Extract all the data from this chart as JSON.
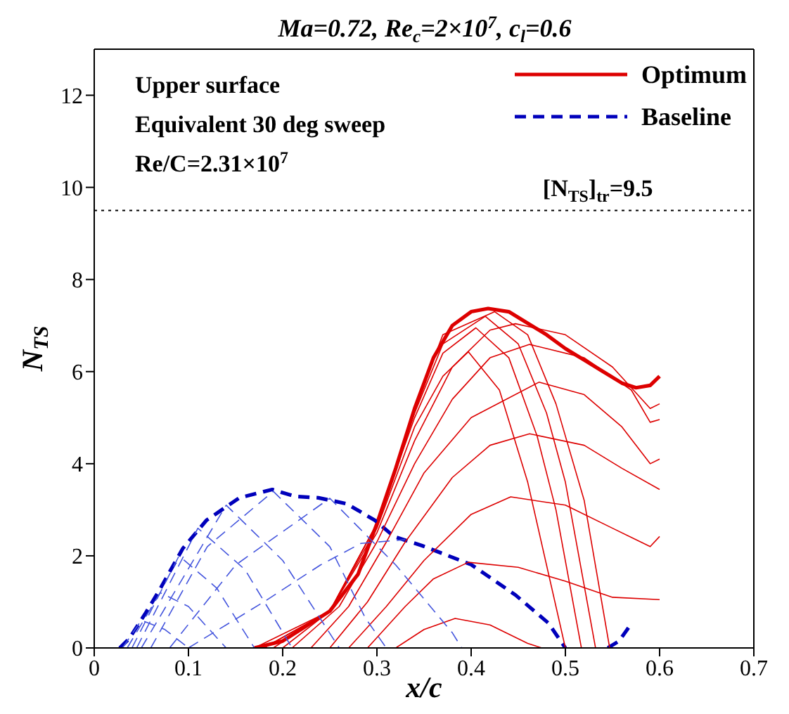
{
  "chart_data": {
    "type": "line",
    "title": "Ma=0.72, Re$_{c}$=2×10$^{7}$, c$_{l}$=0.6",
    "xlabel": "x/c",
    "ylabel": "N$_{TS}$",
    "annotations": [
      "Upper surface",
      "Equivalent 30 deg sweep",
      "Re/C=2.31×10$^{7}$"
    ],
    "xlim": [
      0,
      0.7
    ],
    "xticks": [
      0,
      0.1,
      0.2,
      0.3,
      0.4,
      0.5,
      0.6,
      0.7
    ],
    "ylim": [
      0,
      13
    ],
    "yticks": [
      0,
      2,
      4,
      6,
      8,
      10,
      12
    ],
    "legend": "top right",
    "marker": "none",
    "ref_lines": [
      {
        "axis": "y",
        "value": 9.5,
        "label": "[N$_{TS}$]$_{tr}$=9.5",
        "color": "#000000",
        "line_style": "dotted"
      }
    ],
    "series": [
      {
        "name": "Optimum",
        "color": "#dd0000",
        "line_style": "solid",
        "x": [
          0.17,
          0.2,
          0.25,
          0.28,
          0.3,
          0.32,
          0.34,
          0.36,
          0.38,
          0.4,
          0.418,
          0.44,
          0.46,
          0.48,
          0.5,
          0.52,
          0.54,
          0.56,
          0.575,
          0.59,
          0.6
        ],
        "values": [
          0,
          0.15,
          0.8,
          1.6,
          2.7,
          3.9,
          5.2,
          6.3,
          7.0,
          7.3,
          7.37,
          7.3,
          7.05,
          6.8,
          6.5,
          6.25,
          6.0,
          5.75,
          5.65,
          5.7,
          5.9
        ]
      },
      {
        "name": "Baseline",
        "color": "#0000bb",
        "line_style": "dashed",
        "x": [
          0.027,
          0.037,
          0.054,
          0.069,
          0.094,
          0.119,
          0.154,
          0.189,
          0.213,
          0.238,
          0.268,
          0.298,
          0.318,
          0.348,
          0.4,
          0.447,
          0.482,
          0.5,
          0.52,
          0.545,
          0.557,
          0.567
        ],
        "values": [
          0,
          0.2,
          0.74,
          1.25,
          2.16,
          2.77,
          3.26,
          3.44,
          3.29,
          3.26,
          3.13,
          2.77,
          2.42,
          2.22,
          1.81,
          1.15,
          0.54,
          0,
          null,
          0,
          0.15,
          0.44
        ]
      },
      {
        "color": "#dd0000",
        "line_style": "solid",
        "x": [
          0.32,
          0.35,
          0.383,
          0.42,
          0.46,
          0.475
        ],
        "values": [
          0,
          0.4,
          0.64,
          0.5,
          0.1,
          0
        ]
      },
      {
        "color": "#dd0000",
        "line_style": "solid",
        "x": [
          0.29,
          0.33,
          0.36,
          0.397,
          0.45,
          0.5,
          0.55,
          0.6
        ],
        "values": [
          0,
          0.9,
          1.5,
          1.86,
          1.75,
          1.45,
          1.1,
          1.05
        ]
      },
      {
        "color": "#dd0000",
        "line_style": "solid",
        "x": [
          0.27,
          0.31,
          0.35,
          0.4,
          0.442,
          0.5,
          0.55,
          0.59,
          0.6
        ],
        "values": [
          0,
          0.9,
          1.9,
          2.9,
          3.28,
          3.1,
          2.6,
          2.2,
          2.42
        ]
      },
      {
        "color": "#dd0000",
        "line_style": "solid",
        "x": [
          0.25,
          0.29,
          0.33,
          0.38,
          0.42,
          0.462,
          0.52,
          0.56,
          0.6
        ],
        "values": [
          0,
          1.0,
          2.3,
          3.7,
          4.4,
          4.65,
          4.4,
          3.9,
          3.44
        ]
      },
      {
        "color": "#dd0000",
        "line_style": "solid",
        "x": [
          0.23,
          0.27,
          0.31,
          0.35,
          0.4,
          0.472,
          0.52,
          0.56,
          0.59,
          0.6
        ],
        "values": [
          0,
          0.9,
          2.3,
          3.8,
          5.0,
          5.77,
          5.5,
          4.8,
          4.0,
          4.1
        ]
      },
      {
        "color": "#dd0000",
        "line_style": "solid",
        "x": [
          0.21,
          0.26,
          0.3,
          0.34,
          0.38,
          0.42,
          0.462,
          0.52,
          0.57,
          0.59,
          0.6
        ],
        "values": [
          0,
          0.9,
          2.3,
          4.0,
          5.4,
          6.3,
          6.59,
          6.3,
          5.6,
          4.9,
          4.96
        ]
      },
      {
        "color": "#dd0000",
        "line_style": "solid",
        "x": [
          0.2,
          0.25,
          0.3,
          0.34,
          0.38,
          0.42,
          0.447,
          0.5,
          0.55,
          0.59,
          0.6
        ],
        "values": [
          0,
          0.8,
          2.5,
          4.5,
          6.1,
          6.9,
          7.04,
          6.8,
          6.1,
          5.2,
          5.3
        ]
      },
      {
        "color": "#dd0000",
        "line_style": "solid",
        "x": [
          0.19,
          0.25,
          0.3,
          0.34,
          0.37,
          0.397,
          0.43,
          0.46,
          0.5
        ],
        "values": [
          0,
          0.8,
          2.6,
          4.8,
          5.9,
          6.43,
          5.6,
          3.6,
          0
        ]
      },
      {
        "color": "#dd0000",
        "line_style": "solid",
        "x": [
          0.18,
          0.25,
          0.3,
          0.34,
          0.37,
          0.405,
          0.44,
          0.47,
          0.49,
          0.517
        ],
        "values": [
          0,
          0.8,
          2.7,
          5.0,
          6.4,
          6.95,
          6.3,
          4.6,
          3.0,
          0
        ]
      },
      {
        "color": "#dd0000",
        "line_style": "solid",
        "x": [
          0.18,
          0.25,
          0.3,
          0.34,
          0.37,
          0.415,
          0.45,
          0.48,
          0.5,
          0.532
        ],
        "values": [
          0,
          0.8,
          2.7,
          5.1,
          6.6,
          7.2,
          6.6,
          5.1,
          3.6,
          0
        ]
      },
      {
        "color": "#dd0000",
        "line_style": "solid",
        "x": [
          0.17,
          0.25,
          0.3,
          0.34,
          0.37,
          0.425,
          0.46,
          0.49,
          0.52,
          0.547
        ],
        "values": [
          0,
          0.8,
          2.7,
          5.2,
          6.8,
          7.3,
          6.8,
          5.3,
          3.2,
          0
        ]
      },
      {
        "color": "#4455dd",
        "line_style": "dashed",
        "x": [
          0.03,
          0.05,
          0.075,
          0.1
        ],
        "values": [
          0,
          0.6,
          0.4,
          0
        ]
      },
      {
        "color": "#4455dd",
        "line_style": "dashed",
        "x": [
          0.035,
          0.07,
          0.1,
          0.14
        ],
        "values": [
          0,
          1.2,
          0.9,
          0
        ]
      },
      {
        "color": "#4455dd",
        "line_style": "dashed",
        "x": [
          0.04,
          0.09,
          0.13,
          0.17
        ],
        "values": [
          0,
          2.0,
          1.3,
          0
        ]
      },
      {
        "color": "#4455dd",
        "line_style": "dashed",
        "x": [
          0.045,
          0.11,
          0.16,
          0.21
        ],
        "values": [
          0,
          2.6,
          1.7,
          0
        ]
      },
      {
        "color": "#4455dd",
        "line_style": "dashed",
        "x": [
          0.05,
          0.14,
          0.2,
          0.26
        ],
        "values": [
          0,
          3.1,
          1.9,
          0
        ]
      },
      {
        "color": "#4455dd",
        "line_style": "dashed",
        "x": [
          0.06,
          0.12,
          0.19,
          0.25,
          0.288,
          0.31
        ],
        "values": [
          0,
          2.2,
          3.4,
          2.2,
          0.64,
          0
        ]
      },
      {
        "color": "#4455dd",
        "line_style": "dashed",
        "x": [
          0.08,
          0.15,
          0.25,
          0.32,
          0.38,
          0.39
        ],
        "values": [
          0,
          1.8,
          3.25,
          1.8,
          0.33,
          0
        ]
      },
      {
        "color": "#4455dd",
        "line_style": "dashed",
        "x": [
          0.1,
          0.18,
          0.24,
          0.283,
          0.33
        ],
        "values": [
          0,
          1.0,
          1.8,
          2.27,
          2.35
        ]
      }
    ]
  }
}
